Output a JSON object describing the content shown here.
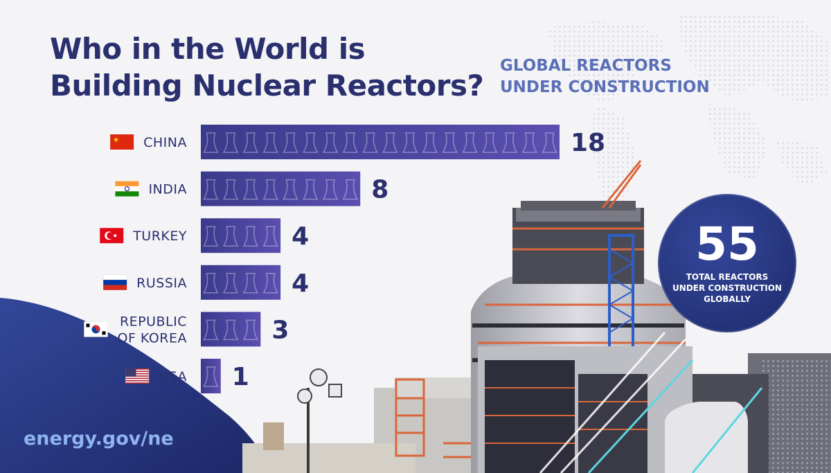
{
  "header": {
    "title_line1": "Who in the World is",
    "title_line2": "Building Nuclear Reactors?",
    "subtitle_line1": "GLOBAL REACTORS",
    "subtitle_line2": "UNDER CONSTRUCTION"
  },
  "chart_data": {
    "type": "bar",
    "orientation": "horizontal",
    "title": "Who in the World is Building Nuclear Reactors?",
    "subtitle": "GLOBAL REACTORS UNDER CONSTRUCTION",
    "categories": [
      [
        "CHINA"
      ],
      [
        "INDIA"
      ],
      [
        "TURKEY"
      ],
      [
        "RUSSIA"
      ],
      [
        "REPUBLIC",
        "OF KOREA"
      ],
      [
        "USA"
      ]
    ],
    "values": [
      18,
      8,
      4,
      4,
      3,
      1
    ],
    "value_labels": [
      "18",
      "8",
      "4",
      "4",
      "3",
      "1"
    ],
    "flags": [
      "china-flag-icon",
      "india-flag-icon",
      "turkey-flag-icon",
      "russia-flag-icon",
      "korea-flag-icon",
      "usa-flag-icon"
    ],
    "xlim": [
      0,
      18
    ],
    "grid": false,
    "bar_color": "#5b4fb0",
    "bar_color_dark": "#3a3a8c"
  },
  "total": {
    "value": "55",
    "caption_line1": "TOTAL REACTORS",
    "caption_line2": "UNDER CONSTRUCTION",
    "caption_line3": "GLOBALLY"
  },
  "footer": {
    "url": "energy.gov/ne"
  },
  "colors": {
    "navy": "#2a2f6e",
    "accent_blue": "#5a6fb8",
    "footer_url": "#8fb4ee"
  }
}
